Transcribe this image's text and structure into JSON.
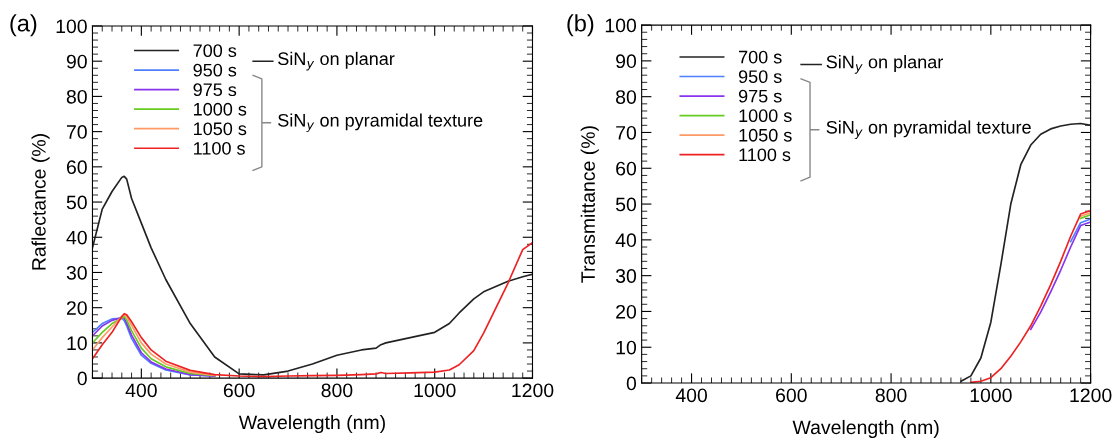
{
  "chart_data": [
    {
      "type": "line",
      "xlabel": "Wavelength (nm)",
      "ylabel": "Raflectance (%)",
      "xlim": [
        300,
        1200
      ],
      "ylim": [
        0,
        100
      ],
      "xticks": [
        400,
        600,
        800,
        1000,
        1200
      ],
      "yticks": [
        0,
        10,
        20,
        30,
        40,
        50,
        60,
        70,
        80,
        90,
        100
      ],
      "grid": false,
      "legend": "top left",
      "line_style": "solid",
      "marker": "none",
      "annotations": [
        "(a)",
        "SiN$_{y}$ on planar",
        "SiN$_{y}$ on pyramidal texture"
      ],
      "x": [
        300,
        320,
        340,
        360,
        365,
        370,
        380,
        400,
        420,
        450,
        500,
        550,
        600,
        650,
        700,
        750,
        800,
        850,
        880,
        890,
        900,
        950,
        1000,
        1030,
        1050,
        1080,
        1100,
        1150,
        1180,
        1200
      ],
      "series": [
        {
          "name": "700 s",
          "color": "#222222",
          "values": [
            37,
            48,
            53,
            57,
            57.3,
            56.5,
            51,
            44,
            37,
            28,
            15.5,
            6,
            1.2,
            0.9,
            2,
            4,
            6.5,
            8,
            8.5,
            9.5,
            10,
            11.5,
            13,
            15.5,
            18.5,
            22.5,
            24.5,
            27.5,
            28.8,
            29.5
          ]
        },
        {
          "name": "950 s",
          "color": "#4f7fff",
          "values": [
            13,
            15.5,
            16.8,
            17.0,
            16.3,
            14.8,
            11.3,
            6.5,
            4.2,
            2.3,
            0.9,
            0.6,
            null,
            null,
            null,
            null,
            null,
            null,
            null,
            null,
            null,
            null,
            null,
            null,
            null,
            null,
            null,
            null,
            null,
            null
          ]
        },
        {
          "name": "975 s",
          "color": "#8833ee",
          "values": [
            12,
            14.8,
            16.4,
            17.2,
            17,
            15.6,
            12.2,
            7.2,
            4.6,
            2.6,
            1,
            0.6,
            null,
            null,
            null,
            null,
            null,
            null,
            null,
            null,
            null,
            null,
            null,
            null,
            null,
            null,
            null,
            null,
            null,
            null
          ]
        },
        {
          "name": "1000 s",
          "color": "#66cc22",
          "values": [
            10,
            13,
            15.5,
            17,
            17.5,
            16.5,
            13.5,
            8.5,
            5.5,
            3.2,
            1.3,
            0.7,
            null,
            null,
            null,
            null,
            null,
            null,
            null,
            null,
            null,
            null,
            null,
            null,
            null,
            null,
            null,
            null,
            null,
            null
          ]
        },
        {
          "name": "1050 s",
          "color": "#ff9966",
          "values": [
            8,
            11.5,
            14.5,
            17.5,
            18,
            17.5,
            15,
            10,
            6.8,
            4,
            1.7,
            0.8,
            null,
            null,
            null,
            null,
            null,
            null,
            null,
            null,
            null,
            null,
            null,
            null,
            null,
            null,
            null,
            null,
            null,
            null
          ]
        },
        {
          "name": "1100 s",
          "color": "#ee2222",
          "values": [
            5.5,
            9.5,
            13,
            17.5,
            18.3,
            18,
            16,
            11.5,
            8,
            4.8,
            2.2,
            1,
            0.6,
            0.4,
            0.6,
            0.7,
            0.8,
            1,
            1.2,
            1.6,
            1.3,
            1.5,
            1.7,
            2.3,
            3.8,
            7.8,
            12.8,
            27,
            36.5,
            38.5
          ]
        }
      ]
    },
    {
      "type": "line",
      "xlabel": "Wavelength (nm)",
      "ylabel": "Transmittance (%)",
      "xlim": [
        300,
        1200
      ],
      "ylim": [
        0,
        100
      ],
      "xticks": [
        400,
        600,
        800,
        1000,
        1200
      ],
      "yticks": [
        0,
        10,
        20,
        30,
        40,
        50,
        60,
        70,
        80,
        90,
        100
      ],
      "grid": false,
      "legend": "top left",
      "line_style": "solid",
      "marker": "none",
      "annotations": [
        "(b)",
        "SiN$_{y}$ on planar",
        "SiN$_{y}$ on pyramidal texture"
      ],
      "x": [
        940,
        960,
        980,
        1000,
        1020,
        1040,
        1060,
        1080,
        1100,
        1120,
        1140,
        1160,
        1180,
        1200
      ],
      "series": [
        {
          "name": "700 s",
          "color": "#222222",
          "values": [
            0.5,
            2,
            7,
            17,
            33,
            50,
            61,
            66.5,
            69.5,
            71,
            71.8,
            72.3,
            72.5,
            72
          ]
        },
        {
          "name": "950 s",
          "color": "#4f7fff",
          "values": [
            null,
            null,
            null,
            null,
            null,
            null,
            null,
            null,
            null,
            null,
            null,
            39.5,
            44.8,
            45.8
          ]
        },
        {
          "name": "975 s",
          "color": "#8833ee",
          "values": [
            null,
            null,
            null,
            null,
            null,
            null,
            null,
            15,
            19.8,
            25.5,
            31.5,
            38,
            44,
            45
          ]
        },
        {
          "name": "1000 s",
          "color": "#66cc22",
          "values": [
            null,
            null,
            null,
            null,
            null,
            null,
            null,
            null,
            null,
            null,
            null,
            null,
            46,
            47
          ]
        },
        {
          "name": "1050 s",
          "color": "#ff9966",
          "values": [
            null,
            null,
            null,
            null,
            null,
            null,
            null,
            null,
            null,
            null,
            null,
            null,
            46.6,
            47.6
          ]
        },
        {
          "name": "1100 s",
          "color": "#ee2222",
          "values": [
            null,
            0.2,
            0.5,
            1.5,
            4,
            7.5,
            11.5,
            16,
            21.5,
            27.5,
            34,
            41,
            47.2,
            48.2
          ]
        }
      ]
    }
  ]
}
